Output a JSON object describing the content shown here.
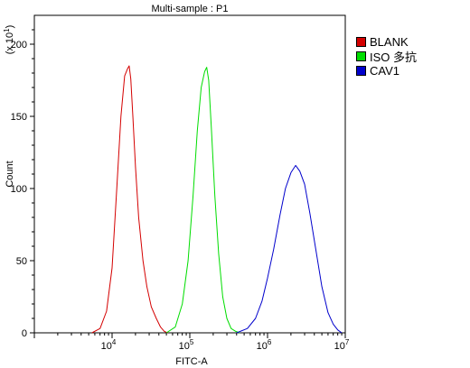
{
  "chart_data": {
    "type": "line",
    "title": "Multi-sample : P1",
    "xlabel": "FITC-A",
    "ylabel": "Count",
    "y_scale_label_prefix": "(x 10",
    "y_scale_label_exp": "1",
    "y_scale_label_suffix": ")",
    "x_scale": "log",
    "xlim": [
      1000,
      10000000
    ],
    "ylim": [
      0,
      220
    ],
    "yticks": [
      0,
      50,
      100,
      150,
      200
    ],
    "xticks": [
      {
        "value": 10000,
        "base": "10",
        "exp": "4"
      },
      {
        "value": 100000,
        "base": "10",
        "exp": "5"
      },
      {
        "value": 1000000,
        "base": "10",
        "exp": "6"
      },
      {
        "value": 10000000,
        "base": "10",
        "exp": "7"
      }
    ],
    "legend_position": "right",
    "series": [
      {
        "name": "BLANK",
        "color": "#d40000",
        "x": [
          5500,
          7000,
          8500,
          10000,
          11500,
          13000,
          14500,
          15800,
          16600,
          17400,
          18500,
          20000,
          22000,
          25000,
          28000,
          32000,
          37000,
          42000,
          47000,
          52000
        ],
        "y": [
          0,
          3,
          15,
          45,
          100,
          150,
          178,
          183,
          185,
          176,
          150,
          115,
          80,
          50,
          32,
          18,
          10,
          4,
          1,
          0
        ]
      },
      {
        "name": "ISO 多抗",
        "color": "#00dd00",
        "x": [
          50000,
          65000,
          80000,
          95000,
          110000,
          125000,
          140000,
          155000,
          165000,
          175000,
          190000,
          210000,
          235000,
          265000,
          300000,
          340000,
          390000,
          440000
        ],
        "y": [
          0,
          4,
          20,
          50,
          95,
          140,
          170,
          181,
          184,
          175,
          140,
          95,
          55,
          25,
          10,
          3,
          1,
          0
        ]
      },
      {
        "name": "CAV1",
        "color": "#0000cc",
        "x": [
          400000,
          550000,
          700000,
          850000,
          1000000,
          1200000,
          1450000,
          1700000,
          2000000,
          2300000,
          2600000,
          3000000,
          3500000,
          4200000,
          5000000,
          6000000,
          7000000,
          8000000,
          9000000
        ],
        "y": [
          0,
          3,
          10,
          22,
          38,
          58,
          82,
          100,
          111,
          116,
          112,
          103,
          83,
          57,
          32,
          14,
          6,
          2,
          0
        ]
      }
    ]
  }
}
